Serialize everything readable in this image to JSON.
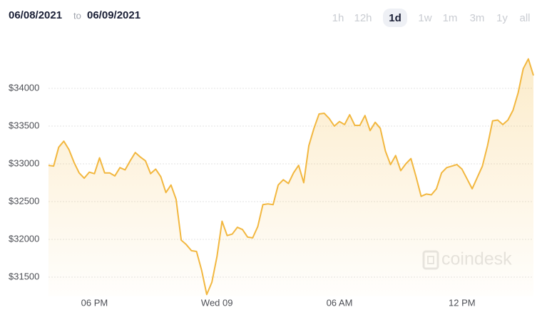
{
  "header": {
    "from": "06/08/2021",
    "separator": "to",
    "to": "06/09/2021",
    "ranges": [
      "1h",
      "12h",
      "1d",
      "1w",
      "1m",
      "3m",
      "1y",
      "all"
    ],
    "selected": "1d"
  },
  "watermark": "coindesk",
  "chart_data": {
    "type": "line",
    "color": "#f2b73f",
    "grid": true,
    "categories": [
      null,
      null,
      null,
      null,
      null,
      null,
      null,
      null,
      null,
      "06 PM",
      null,
      null,
      null,
      null,
      null,
      null,
      null,
      null,
      null,
      null,
      null,
      null,
      null,
      null,
      null,
      null,
      null,
      null,
      null,
      null,
      null,
      null,
      null,
      "Wed 09",
      null,
      null,
      null,
      null,
      null,
      null,
      null,
      null,
      null,
      null,
      null,
      null,
      null,
      null,
      null,
      null,
      null,
      null,
      null,
      null,
      null,
      null,
      null,
      "06 AM",
      null,
      null,
      null,
      null,
      null,
      null,
      null,
      null,
      null,
      null,
      null,
      null,
      null,
      null,
      null,
      null,
      null,
      null,
      null,
      null,
      null,
      null,
      null,
      "12 PM",
      null,
      null,
      null,
      null,
      null,
      null,
      null,
      null,
      null,
      null,
      null,
      null,
      null,
      null
    ],
    "values": [
      32980,
      32970,
      33220,
      33300,
      33190,
      33020,
      32880,
      32810,
      32890,
      32870,
      33080,
      32880,
      32880,
      32840,
      32950,
      32920,
      33040,
      33150,
      33090,
      33040,
      32870,
      32930,
      32830,
      32620,
      32720,
      32530,
      31990,
      31930,
      31850,
      31840,
      31590,
      31270,
      31430,
      31770,
      32240,
      32050,
      32070,
      32160,
      32130,
      32030,
      32020,
      32170,
      32460,
      32470,
      32460,
      32720,
      32790,
      32740,
      32880,
      32980,
      32750,
      33240,
      33470,
      33660,
      33670,
      33600,
      33500,
      33560,
      33520,
      33650,
      33510,
      33510,
      33640,
      33440,
      33550,
      33470,
      33170,
      32990,
      33110,
      32910,
      33000,
      33070,
      32830,
      32570,
      32600,
      32590,
      32670,
      32880,
      32950,
      32970,
      32990,
      32930,
      32800,
      32670,
      32820,
      32970,
      33240,
      33570,
      33580,
      33520,
      33580,
      33710,
      33940,
      34260,
      34390,
      34170
    ],
    "ylim": [
      31250,
      34650
    ],
    "yticks": [
      {
        "value": 31500,
        "label": "$31500"
      },
      {
        "value": 32000,
        "label": "$32000"
      },
      {
        "value": 32500,
        "label": "$32500"
      },
      {
        "value": 33000,
        "label": "$33000"
      },
      {
        "value": 33500,
        "label": "$33500"
      },
      {
        "value": 34000,
        "label": "$34000"
      }
    ]
  }
}
